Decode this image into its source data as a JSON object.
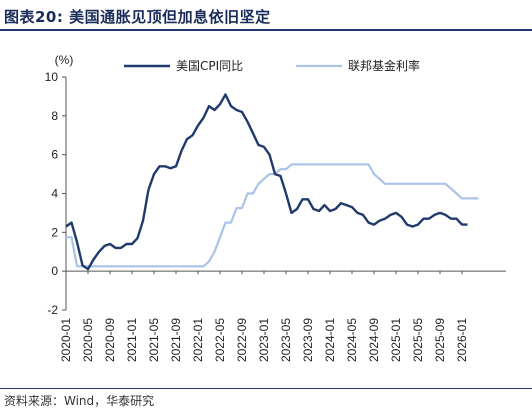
{
  "figure": {
    "title": "图表20:  美国通胀见顶但加息依旧坚定",
    "source": "资料来源：Wind，华泰研究"
  },
  "chart_data": {
    "type": "line",
    "ylabel": "(%)",
    "ylim": [
      -2,
      10
    ],
    "yticks": [
      -2,
      0,
      2,
      4,
      6,
      8,
      10
    ],
    "x_ticks": [
      "2020-01",
      "2020-05",
      "2020-09",
      "2021-01",
      "2021-05",
      "2021-09",
      "2022-01",
      "2022-05",
      "2022-09",
      "2023-01",
      "2023-05",
      "2023-09",
      "2024-01",
      "2024-05",
      "2024-09",
      "2025-01",
      "2025-05",
      "2025-09",
      "2026-01"
    ],
    "x_start": "2020-01",
    "legend_position": "top",
    "grid": false,
    "series": [
      {
        "name": "美国CPI同比",
        "color": "#1f3a6b",
        "values": [
          2.3,
          2.5,
          1.5,
          0.3,
          0.1,
          0.6,
          1.0,
          1.3,
          1.4,
          1.2,
          1.2,
          1.4,
          1.4,
          1.7,
          2.6,
          4.2,
          5.0,
          5.4,
          5.4,
          5.3,
          5.4,
          6.2,
          6.8,
          7.0,
          7.5,
          7.9,
          8.5,
          8.3,
          8.6,
          9.1,
          8.5,
          8.3,
          8.2,
          7.7,
          7.1,
          6.5,
          6.4,
          6.0,
          5.0,
          4.9,
          4.0,
          3.0,
          3.2,
          3.7,
          3.7,
          3.2,
          3.1,
          3.4,
          3.1,
          3.2,
          3.5,
          3.4,
          3.3,
          3.0,
          2.9,
          2.5,
          2.4,
          2.6,
          2.7,
          2.9,
          3.0,
          2.8,
          2.4,
          2.3,
          2.4,
          2.7,
          2.7,
          2.9,
          3.0,
          2.9,
          2.7,
          2.7,
          2.4,
          2.4
        ]
      },
      {
        "name": "联邦基金利率",
        "color": "#a9c4e8",
        "values": [
          1.75,
          1.75,
          0.25,
          0.25,
          0.25,
          0.25,
          0.25,
          0.25,
          0.25,
          0.25,
          0.25,
          0.25,
          0.25,
          0.25,
          0.25,
          0.25,
          0.25,
          0.25,
          0.25,
          0.25,
          0.25,
          0.25,
          0.25,
          0.25,
          0.25,
          0.25,
          0.5,
          1.0,
          1.75,
          2.5,
          2.5,
          3.25,
          3.25,
          4.0,
          4.0,
          4.5,
          4.75,
          5.0,
          5.0,
          5.25,
          5.25,
          5.5,
          5.5,
          5.5,
          5.5,
          5.5,
          5.5,
          5.5,
          5.5,
          5.5,
          5.5,
          5.5,
          5.5,
          5.5,
          5.5,
          5.5,
          5.0,
          4.75,
          4.5,
          4.5,
          4.5,
          4.5,
          4.5,
          4.5,
          4.5,
          4.5,
          4.5,
          4.5,
          4.5,
          4.5,
          4.25,
          4.0,
          3.75,
          3.75,
          3.75,
          3.75
        ]
      }
    ]
  }
}
